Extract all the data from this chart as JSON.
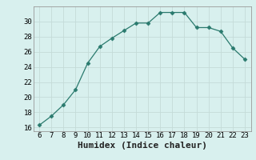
{
  "x": [
    6,
    7,
    8,
    9,
    10,
    11,
    12,
    13,
    14,
    15,
    16,
    17,
    18,
    19,
    20,
    21,
    22,
    23
  ],
  "y": [
    16.3,
    17.5,
    19.0,
    21.0,
    24.5,
    26.7,
    27.8,
    28.8,
    29.8,
    29.8,
    31.2,
    31.2,
    31.2,
    29.2,
    29.2,
    28.7,
    26.5,
    25.0
  ],
  "line_color": "#2a7a6e",
  "marker": "D",
  "marker_size": 2.5,
  "bg_color": "#d8f0ee",
  "grid_color": "#c4dbd8",
  "xlabel": "Humidex (Indice chaleur)",
  "xlim": [
    5.5,
    23.5
  ],
  "ylim": [
    15.5,
    32
  ],
  "yticks": [
    16,
    18,
    20,
    22,
    24,
    26,
    28,
    30
  ],
  "xticks": [
    6,
    7,
    8,
    9,
    10,
    11,
    12,
    13,
    14,
    15,
    16,
    17,
    18,
    19,
    20,
    21,
    22,
    23
  ],
  "tick_label_fontsize": 6.5,
  "xlabel_fontsize": 8.0,
  "spine_color": "#999999"
}
